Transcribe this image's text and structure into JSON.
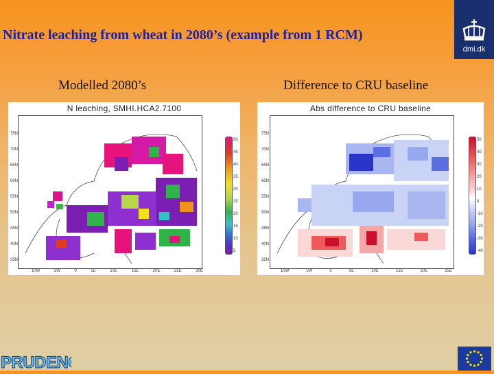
{
  "slide": {
    "title": "Nitrate leaching from wheat in 2080’s (example from 1 RCM)",
    "logo_text": "dmi.dk",
    "logo_icon": "crown-icon",
    "brand_color": "#1a2f6e",
    "title_color": "#1c1fa8"
  },
  "left": {
    "subtitle": "Modelled 2080’s",
    "plot_title": "N leaching, SMHI.HCA2.7100",
    "lat_labels": [
      "75N",
      "70N",
      "65N",
      "60N",
      "55N",
      "50N",
      "45N",
      "40N",
      "35N"
    ],
    "lon_labels": [
      "10W",
      "5W",
      "0",
      "5E",
      "10E",
      "15E",
      "20E",
      "25E",
      "30E"
    ],
    "legend_labels": [
      "50",
      "45",
      "40",
      "35",
      "30",
      "25",
      "20",
      "15",
      "10",
      "5"
    ]
  },
  "right": {
    "subtitle": "Difference to CRU baseline",
    "plot_title": "Abs difference to CRU baseline",
    "lat_labels": [
      "75N",
      "70N",
      "65N",
      "60N",
      "55N",
      "50N",
      "45N",
      "40N",
      "35N"
    ],
    "lon_labels": [
      "10W",
      "5W",
      "0",
      "5E",
      "10E",
      "15E",
      "20E",
      "25E"
    ],
    "legend_labels": [
      "50",
      "40",
      "30",
      "20",
      "10",
      "0",
      "-10",
      "-20",
      "-30",
      "-40"
    ]
  },
  "footer": {
    "project_logo": "PRUDENCE",
    "eu_flag_icon": "eu-flag-icon"
  }
}
